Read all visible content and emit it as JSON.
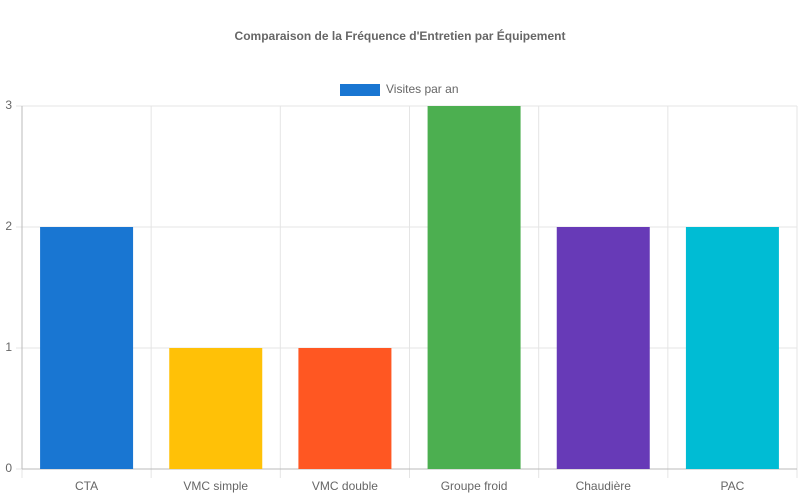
{
  "chart_data": {
    "type": "bar",
    "title": "Comparaison de la Fréquence d'Entretien par Équipement",
    "categories": [
      "CTA",
      "VMC simple",
      "VMC double",
      "Groupe froid",
      "Chaudière",
      "PAC"
    ],
    "series": [
      {
        "name": "Visites par an",
        "colors": [
          "#1976d2",
          "#ffc107",
          "#ff5722",
          "#4caf50",
          "#673ab7",
          "#00bcd4"
        ],
        "values": [
          2,
          1,
          1,
          3,
          2,
          2
        ]
      }
    ],
    "ylim": [
      0,
      3
    ],
    "yticks": [
      0,
      1,
      2,
      3
    ],
    "grid": true,
    "legend": "top"
  }
}
